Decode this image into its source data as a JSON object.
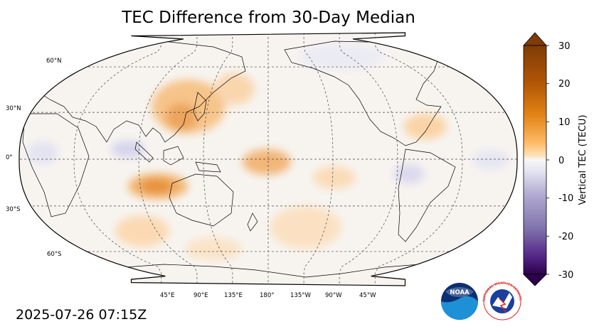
{
  "title": "TEC Difference from 30-Day Median",
  "timestamp": "2025-07-26 07:15Z",
  "map": {
    "projection": "Robinson",
    "central_longitude": "180",
    "gridlines": "dashed",
    "lat_labels": [
      "60°N",
      "30°N",
      "0°",
      "30°S",
      "60°S"
    ],
    "lon_labels": [
      "45°E",
      "90°E",
      "135°E",
      "180°",
      "135°W",
      "90°W",
      "45°W"
    ],
    "anomaly_regions": [
      {
        "area": "East China / Japan",
        "sign": "positive",
        "magnitude_tecu": 8
      },
      {
        "area": "Indian Ocean",
        "sign": "positive",
        "magnitude_tecu": 12
      },
      {
        "area": "Central Pacific",
        "sign": "positive",
        "magnitude_tecu": 10
      },
      {
        "area": "Eastern North America",
        "sign": "positive",
        "magnitude_tecu": 7
      },
      {
        "area": "South Pacific",
        "sign": "positive",
        "magnitude_tecu": 6
      },
      {
        "area": "Southern Indian Ocean",
        "sign": "positive",
        "magnitude_tecu": 7
      },
      {
        "area": "Maritime Continent",
        "sign": "negative",
        "magnitude_tecu": -4
      },
      {
        "area": "South America",
        "sign": "negative",
        "magnitude_tecu": -3
      }
    ]
  },
  "colorbar": {
    "label": "Vertical TEC (TECU)",
    "min": -30,
    "max": 30,
    "ticks": [
      "30",
      "20",
      "10",
      "0",
      "-10",
      "-20",
      "-30"
    ],
    "colors": {
      "positive_max": "#7f3b08",
      "mid_positive": "#e08214",
      "zero": "#f7f7f7",
      "mid_negative": "#8073ac",
      "negative_max": "#2d004b"
    }
  },
  "logos": {
    "noaa_text": "NOAA",
    "nws_text": "NATIONAL WEATHER SERVICE"
  }
}
